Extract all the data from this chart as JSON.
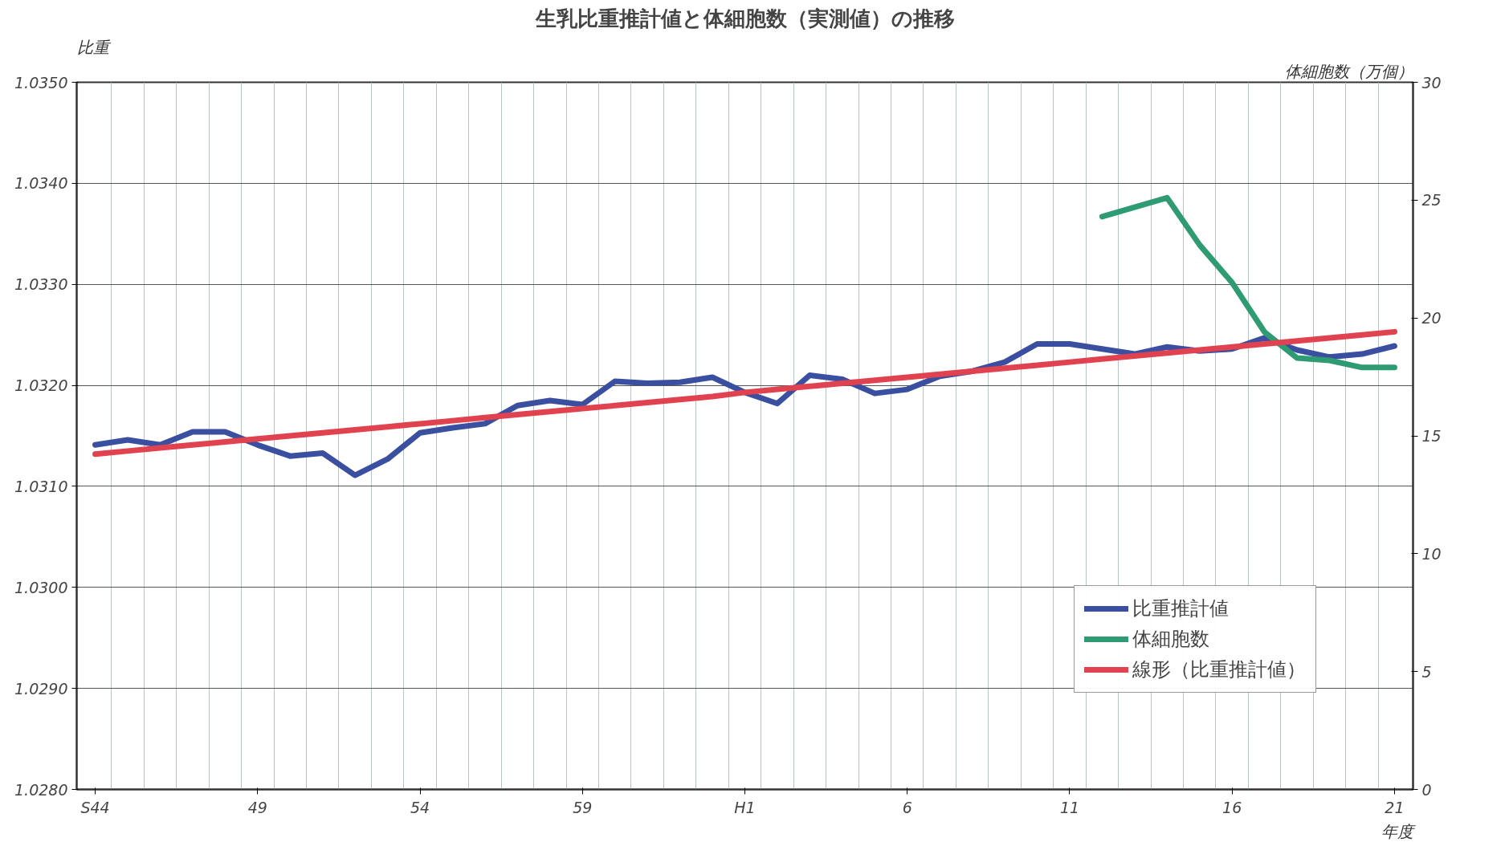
{
  "chart_data": {
    "type": "line",
    "title": "生乳比重推計値と体細胞数（実測値）の推移",
    "xlabel": "年度",
    "ylabel": "比重",
    "y2label": "体細胞数（万個）",
    "categories": [
      "S44",
      null,
      null,
      null,
      null,
      "49",
      null,
      null,
      null,
      null,
      "54",
      null,
      null,
      null,
      null,
      "59",
      null,
      null,
      null,
      null,
      "H1",
      null,
      null,
      null,
      null,
      "6",
      null,
      null,
      null,
      null,
      "11",
      null,
      null,
      null,
      null,
      "16",
      null,
      null,
      null,
      null,
      "21"
    ],
    "ylim": [
      1.028,
      1.035
    ],
    "yticks": [
      {
        "value": 1.028,
        "label": "1.0280"
      },
      {
        "value": 1.029,
        "label": "1.0290"
      },
      {
        "value": 1.03,
        "label": "1.0300"
      },
      {
        "value": 1.031,
        "label": "1.0310"
      },
      {
        "value": 1.032,
        "label": "1.0320"
      },
      {
        "value": 1.033,
        "label": "1.0330"
      },
      {
        "value": 1.034,
        "label": "1.0340"
      },
      {
        "value": 1.035,
        "label": "1.0350"
      }
    ],
    "y2lim": [
      0,
      30
    ],
    "y2ticks": [
      0,
      5,
      10,
      15,
      20,
      25,
      30
    ],
    "grid": true,
    "legend": "bottom right",
    "marker": "none",
    "line_style": "solid",
    "series": [
      {
        "name": "比重推計値",
        "color": "#3a4fa0",
        "values": [
          1.03141,
          1.03146,
          1.03141,
          1.03154,
          1.03154,
          1.03141,
          1.0313,
          1.03133,
          1.03111,
          1.03127,
          1.03153,
          1.03158,
          1.03162,
          1.0318,
          1.03185,
          1.03181,
          1.03204,
          1.03202,
          1.03203,
          1.03208,
          1.03193,
          1.03182,
          1.0321,
          1.03206,
          1.03192,
          1.03196,
          1.03209,
          1.03214,
          1.03223,
          1.03241,
          1.03241,
          1.03236,
          1.03231,
          1.03238,
          1.03234,
          1.03236,
          1.03247,
          1.03235,
          1.03228,
          1.03231,
          1.03239
        ]
      },
      {
        "name": "体細胞数",
        "color": "#2e9b72",
        "axis": "y2",
        "values": [
          null,
          null,
          null,
          null,
          null,
          null,
          null,
          null,
          null,
          null,
          null,
          null,
          null,
          null,
          null,
          null,
          null,
          null,
          null,
          null,
          null,
          null,
          null,
          null,
          null,
          null,
          null,
          null,
          null,
          null,
          null,
          24.3,
          24.7,
          25.1,
          23.1,
          21.5,
          19.4,
          18.3,
          18.2,
          17.9,
          17.9
        ]
      },
      {
        "name": "線形（比重推計値）",
        "color": "#e0434f",
        "values": [
          1.03132,
          1.03135,
          1.03138,
          1.03141,
          1.03144,
          1.03147,
          1.0315,
          1.03153,
          1.03156,
          1.03159,
          1.03162,
          1.03165,
          1.03168,
          1.03171,
          1.03174,
          1.03177,
          1.0318,
          1.03183,
          1.03186,
          1.03189,
          1.03193,
          1.03196,
          1.03199,
          1.03202,
          1.03205,
          1.03208,
          1.03211,
          1.03214,
          1.03217,
          1.0322,
          1.03223,
          1.03226,
          1.03229,
          1.03232,
          1.03235,
          1.03238,
          1.03241,
          1.03244,
          1.03247,
          1.0325,
          1.03253
        ]
      }
    ]
  }
}
